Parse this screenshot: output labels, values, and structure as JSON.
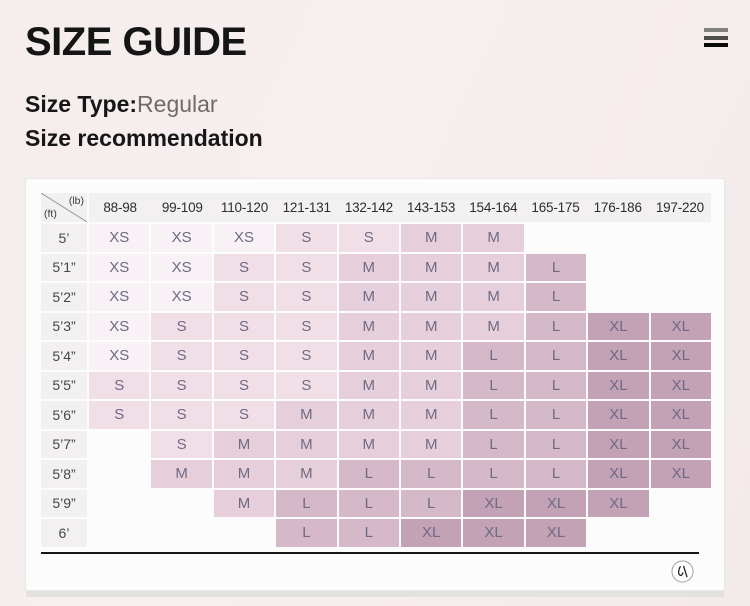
{
  "header": {
    "title": "SIZE GUIDE",
    "menu_icon": "hamburger-menu"
  },
  "subheader": {
    "size_type_label": "Size Type:",
    "size_type_value": "Regular",
    "recommendation_title": "Size recommendation"
  },
  "size_chart": {
    "corner": {
      "top_label": "(lb)",
      "bottom_label": "(ft)"
    },
    "weight_columns_lb": [
      "88-98",
      "99-109",
      "110-120",
      "121-131",
      "132-142",
      "143-153",
      "154-164",
      "165-175",
      "176-186",
      "197-220"
    ],
    "rows": [
      {
        "height_ft": "5’",
        "sizes": [
          "XS",
          "XS",
          "XS",
          "S",
          "S",
          "M",
          "M",
          "",
          "",
          ""
        ]
      },
      {
        "height_ft": "5’1”",
        "sizes": [
          "XS",
          "XS",
          "S",
          "S",
          "M",
          "M",
          "M",
          "L",
          "",
          ""
        ]
      },
      {
        "height_ft": "5’2”",
        "sizes": [
          "XS",
          "XS",
          "S",
          "S",
          "M",
          "M",
          "M",
          "L",
          "",
          ""
        ]
      },
      {
        "height_ft": "5’3”",
        "sizes": [
          "XS",
          "S",
          "S",
          "S",
          "M",
          "M",
          "M",
          "L",
          "XL",
          "XL"
        ]
      },
      {
        "height_ft": "5’4”",
        "sizes": [
          "XS",
          "S",
          "S",
          "S",
          "M",
          "M",
          "L",
          "L",
          "XL",
          "XL"
        ]
      },
      {
        "height_ft": "5’5”",
        "sizes": [
          "S",
          "S",
          "S",
          "S",
          "M",
          "M",
          "L",
          "L",
          "XL",
          "XL"
        ]
      },
      {
        "height_ft": "5’6”",
        "sizes": [
          "S",
          "S",
          "S",
          "M",
          "M",
          "M",
          "L",
          "L",
          "XL",
          "XL"
        ]
      },
      {
        "height_ft": "5’7”",
        "sizes": [
          "",
          "S",
          "M",
          "M",
          "M",
          "M",
          "L",
          "L",
          "XL",
          "XL"
        ]
      },
      {
        "height_ft": "5’8”",
        "sizes": [
          "",
          "M",
          "M",
          "M",
          "L",
          "L",
          "L",
          "L",
          "XL",
          "XL"
        ]
      },
      {
        "height_ft": "5’9”",
        "sizes": [
          "",
          "",
          "M",
          "L",
          "L",
          "L",
          "XL",
          "XL",
          "XL",
          ""
        ]
      },
      {
        "height_ft": "6’",
        "sizes": [
          "",
          "",
          "",
          "L",
          "L",
          "XL",
          "XL",
          "XL",
          "",
          ""
        ]
      }
    ]
  },
  "colors": {
    "size_fill": {
      "XS": "#f8f1f5",
      "S": "#f1dfe8",
      "M": "#e6cfda",
      "L": "#d6b9c8",
      "XL": "#c2a2b4"
    },
    "size_text": "#6e6a84",
    "accent_line": "#161616"
  },
  "footer": {
    "brand_logo": "circled-brand-monogram"
  }
}
